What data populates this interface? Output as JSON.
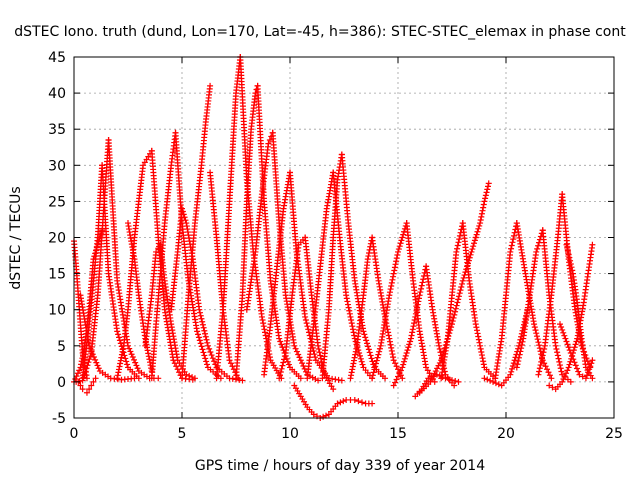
{
  "chart_data": {
    "type": "scatter",
    "title": "dSTEC Iono. truth (dund, Lon=170, Lat=-45, h=386): STEC-STEC_elemax in phase cont",
    "xlabel": "GPS time / hours of day 339 of year 2014",
    "ylabel": "dSTEC  / TECUs",
    "xlim": [
      0,
      25
    ],
    "ylim": [
      -5,
      45
    ],
    "xticks": [
      "0",
      "5",
      "10",
      "15",
      "20",
      "25"
    ],
    "yticks": [
      "-5",
      "0",
      "5",
      "10",
      "15",
      "20",
      "25",
      "30",
      "35",
      "40",
      "45"
    ],
    "grid": true,
    "marker": "+",
    "marker_color": "#ff0000",
    "series": [
      {
        "x": [
          0.0,
          0.1,
          0.25,
          0.4,
          0.6
        ],
        "y": [
          19.5,
          16,
          10,
          4,
          0.5
        ]
      },
      {
        "x": [
          0.1,
          0.4,
          0.8,
          1.1,
          1.4,
          1.6
        ],
        "y": [
          0,
          0.2,
          4,
          12,
          25,
          33.5
        ]
      },
      {
        "x": [
          1.6,
          2.0,
          2.5,
          3.0,
          3.5,
          3.9
        ],
        "y": [
          33.5,
          14,
          5,
          1.5,
          0.5,
          0.5
        ]
      },
      {
        "x": [
          0.3,
          0.7,
          1.2,
          1.7,
          2.2,
          2.8
        ],
        "y": [
          12,
          5,
          1.5,
          0.5,
          0.3,
          0.5
        ]
      },
      {
        "x": [
          0.4,
          0.7,
          0.9,
          1.1,
          1.3
        ],
        "y": [
          0.5,
          8,
          14,
          20,
          30
        ]
      },
      {
        "x": [
          1.3,
          1.6,
          2.0,
          2.5,
          3.0
        ],
        "y": [
          30,
          15,
          7,
          2,
          0.5
        ]
      },
      {
        "x": [
          0.0,
          0.3,
          0.5,
          0.7,
          0.9,
          1.3
        ],
        "y": [
          0,
          2,
          5,
          10,
          17,
          21
        ]
      },
      {
        "x": [
          0.2,
          0.4,
          0.6,
          0.8,
          1.0
        ],
        "y": [
          0,
          -1,
          -1.5,
          -0.5,
          0.5
        ]
      },
      {
        "x": [
          2.0,
          2.3,
          2.5,
          2.8,
          3.2,
          3.6
        ],
        "y": [
          0.5,
          5,
          10,
          20,
          30,
          32
        ]
      },
      {
        "x": [
          3.6,
          3.9,
          4.2,
          4.6,
          5.0,
          5.5
        ],
        "y": [
          32,
          20,
          10,
          3,
          0.5,
          0.3
        ]
      },
      {
        "x": [
          2.5,
          2.8,
          3.0,
          3.3,
          3.6
        ],
        "y": [
          22,
          17,
          12,
          6,
          1.5
        ]
      },
      {
        "x": [
          3.6,
          3.8,
          4.0,
          4.2,
          4.5,
          4.7
        ],
        "y": [
          0.5,
          8,
          15,
          22,
          30,
          34.5
        ]
      },
      {
        "x": [
          4.7,
          5.0,
          5.3,
          5.7,
          6.2,
          6.8
        ],
        "y": [
          34.5,
          22,
          14,
          7,
          2,
          0.5
        ]
      },
      {
        "x": [
          3.3,
          3.6,
          3.8,
          4.0
        ],
        "y": [
          5,
          12,
          18,
          19
        ]
      },
      {
        "x": [
          4.0,
          4.2,
          4.5,
          4.8,
          5.2,
          5.6
        ],
        "y": [
          19,
          14,
          8,
          3,
          1,
          0.5
        ]
      },
      {
        "x": [
          5.0,
          5.3,
          5.6,
          5.9,
          6.1,
          6.3
        ],
        "y": [
          0.5,
          12,
          22,
          30,
          36,
          41
        ]
      },
      {
        "x": [
          6.3,
          6.6,
          6.9,
          7.2,
          7.6
        ],
        "y": [
          29,
          20,
          10,
          3,
          0.5
        ]
      },
      {
        "x": [
          4.5,
          4.8,
          5.0,
          5.2,
          5.5
        ],
        "y": [
          10,
          18,
          24,
          22,
          17
        ]
      },
      {
        "x": [
          5.5,
          5.8,
          6.2,
          6.6,
          7.2,
          7.8
        ],
        "y": [
          17,
          10,
          5,
          2,
          0.5,
          0.2
        ]
      },
      {
        "x": [
          6.6,
          6.9,
          7.1,
          7.3,
          7.5,
          7.7
        ],
        "y": [
          0.5,
          10,
          20,
          30,
          40,
          45
        ]
      },
      {
        "x": [
          7.7,
          8.0,
          8.3,
          8.7,
          9.1,
          9.6
        ],
        "y": [
          45,
          28,
          18,
          9,
          3,
          0.5
        ]
      },
      {
        "x": [
          7.5,
          7.8,
          8.0,
          8.2,
          8.4,
          8.5
        ],
        "y": [
          0.5,
          12,
          25,
          35,
          40,
          41
        ]
      },
      {
        "x": [
          8.5,
          8.8,
          9.1,
          9.5,
          10.0,
          10.5
        ],
        "y": [
          41,
          25,
          14,
          6,
          2,
          0.5
        ]
      },
      {
        "x": [
          8.0,
          8.4,
          8.7,
          9.0,
          9.2
        ],
        "y": [
          10,
          18,
          26,
          33,
          34.5
        ]
      },
      {
        "x": [
          9.2,
          9.5,
          9.8,
          10.2,
          10.8,
          11.3
        ],
        "y": [
          34.5,
          22,
          12,
          5,
          1,
          0.2
        ]
      },
      {
        "x": [
          8.8,
          9.1,
          9.4,
          9.7,
          10.0
        ],
        "y": [
          1,
          8,
          16,
          24,
          29
        ]
      },
      {
        "x": [
          10.0,
          10.3,
          10.7,
          11.2,
          11.8,
          12.4
        ],
        "y": [
          29,
          18,
          9,
          3,
          0.5,
          0.2
        ]
      },
      {
        "x": [
          9.5,
          9.8,
          10.1,
          10.4,
          10.7
        ],
        "y": [
          0.5,
          4,
          12,
          19,
          20
        ]
      },
      {
        "x": [
          10.7,
          11.0,
          11.3,
          11.6,
          12.0
        ],
        "y": [
          20,
          12,
          5,
          1,
          -1
        ]
      },
      {
        "x": [
          10.2,
          10.5,
          10.8,
          11.1,
          11.4,
          11.8,
          12.2
        ],
        "y": [
          -0.5,
          -2,
          -3.5,
          -4.5,
          -5,
          -4.5,
          -3
        ]
      },
      {
        "x": [
          12.2,
          12.6,
          13.0,
          13.5,
          13.8
        ],
        "y": [
          -3,
          -2.5,
          -2.5,
          -3,
          -3
        ]
      },
      {
        "x": [
          10.8,
          11.1,
          11.4,
          11.7,
          12.0
        ],
        "y": [
          0.5,
          8,
          16,
          24,
          29
        ]
      },
      {
        "x": [
          12.0,
          12.3,
          12.6,
          13.0,
          13.4,
          13.8
        ],
        "y": [
          29,
          20,
          12,
          6,
          2,
          0.5
        ]
      },
      {
        "x": [
          11.5,
          11.8,
          12.0,
          12.2,
          12.4
        ],
        "y": [
          0.5,
          10,
          20,
          28,
          31.5
        ]
      },
      {
        "x": [
          12.4,
          12.7,
          13.0,
          13.4,
          13.9,
          14.4
        ],
        "y": [
          31.5,
          22,
          14,
          7,
          2,
          0.5
        ]
      },
      {
        "x": [
          12.8,
          13.1,
          13.4,
          13.6,
          13.8
        ],
        "y": [
          0.5,
          5,
          12,
          17,
          20
        ]
      },
      {
        "x": [
          13.8,
          14.1,
          14.4,
          14.8,
          15.2
        ],
        "y": [
          20,
          14,
          9,
          3,
          0.5
        ]
      },
      {
        "x": [
          13.8,
          14.2,
          14.6,
          15.0,
          15.4
        ],
        "y": [
          0.5,
          5,
          12,
          18,
          22
        ]
      },
      {
        "x": [
          15.4,
          15.7,
          16.0,
          16.3,
          16.7
        ],
        "y": [
          22,
          14,
          7,
          2,
          0
        ]
      },
      {
        "x": [
          14.8,
          15.2,
          15.6,
          16.0,
          16.3
        ],
        "y": [
          -0.5,
          2,
          6,
          12,
          16
        ]
      },
      {
        "x": [
          16.3,
          16.6,
          16.9,
          17.2,
          17.6
        ],
        "y": [
          16,
          10,
          5,
          1,
          -0.5
        ]
      },
      {
        "x": [
          16.0,
          16.5,
          17.0,
          17.5,
          18.0,
          18.6
        ],
        "y": [
          -1.5,
          0,
          3,
          8,
          14,
          20
        ]
      },
      {
        "x": [
          18.6,
          18.8,
          19.0,
          19.2
        ],
        "y": [
          20,
          22,
          25,
          27.5
        ]
      },
      {
        "x": [
          15.8,
          16.1,
          16.4,
          16.8,
          17.2,
          17.8
        ],
        "y": [
          -2,
          -1,
          0.5,
          1,
          0.5,
          0
        ]
      },
      {
        "x": [
          17.0,
          17.3,
          17.5,
          17.7,
          18.0
        ],
        "y": [
          0.5,
          6,
          12,
          18,
          22
        ]
      },
      {
        "x": [
          18.0,
          18.3,
          18.6,
          19.0,
          19.5
        ],
        "y": [
          22,
          14,
          8,
          2,
          0.5
        ]
      },
      {
        "x": [
          19.0,
          19.4,
          19.8,
          20.2,
          20.6,
          21.0
        ],
        "y": [
          0.5,
          0,
          -0.5,
          1,
          5,
          10
        ]
      },
      {
        "x": [
          19.5,
          19.8,
          20.0,
          20.2,
          20.5
        ],
        "y": [
          0.5,
          6,
          12,
          18,
          22
        ]
      },
      {
        "x": [
          20.5,
          20.9,
          21.3,
          21.7,
          22.1
        ],
        "y": [
          22,
          15,
          8,
          3,
          0.5
        ]
      },
      {
        "x": [
          20.5,
          20.8,
          21.1,
          21.4,
          21.7
        ],
        "y": [
          2,
          6,
          12,
          18,
          21
        ]
      },
      {
        "x": [
          21.7,
          22.0,
          22.3,
          22.6,
          23.0
        ],
        "y": [
          21,
          12,
          5,
          1,
          0
        ]
      },
      {
        "x": [
          21.5,
          21.8,
          22.1,
          22.4,
          22.6
        ],
        "y": [
          1,
          5,
          12,
          20,
          26
        ]
      },
      {
        "x": [
          22.6,
          22.9,
          23.2,
          23.5,
          23.9
        ],
        "y": [
          26,
          17,
          10,
          5,
          2
        ]
      },
      {
        "x": [
          22.0,
          22.3,
          22.6,
          22.9,
          23.3
        ],
        "y": [
          -0.5,
          -1,
          0,
          2,
          6
        ]
      },
      {
        "x": [
          23.3,
          23.6,
          23.8,
          24.0
        ],
        "y": [
          6,
          11,
          15,
          19
        ]
      },
      {
        "x": [
          22.8,
          23.1,
          23.3,
          23.5,
          23.7,
          24.0
        ],
        "y": [
          19,
          15,
          11,
          6,
          2,
          0.5
        ]
      },
      {
        "x": [
          22.5,
          23.0,
          23.4,
          23.7,
          24.0
        ],
        "y": [
          8,
          4,
          1,
          0.5,
          3
        ]
      }
    ]
  }
}
